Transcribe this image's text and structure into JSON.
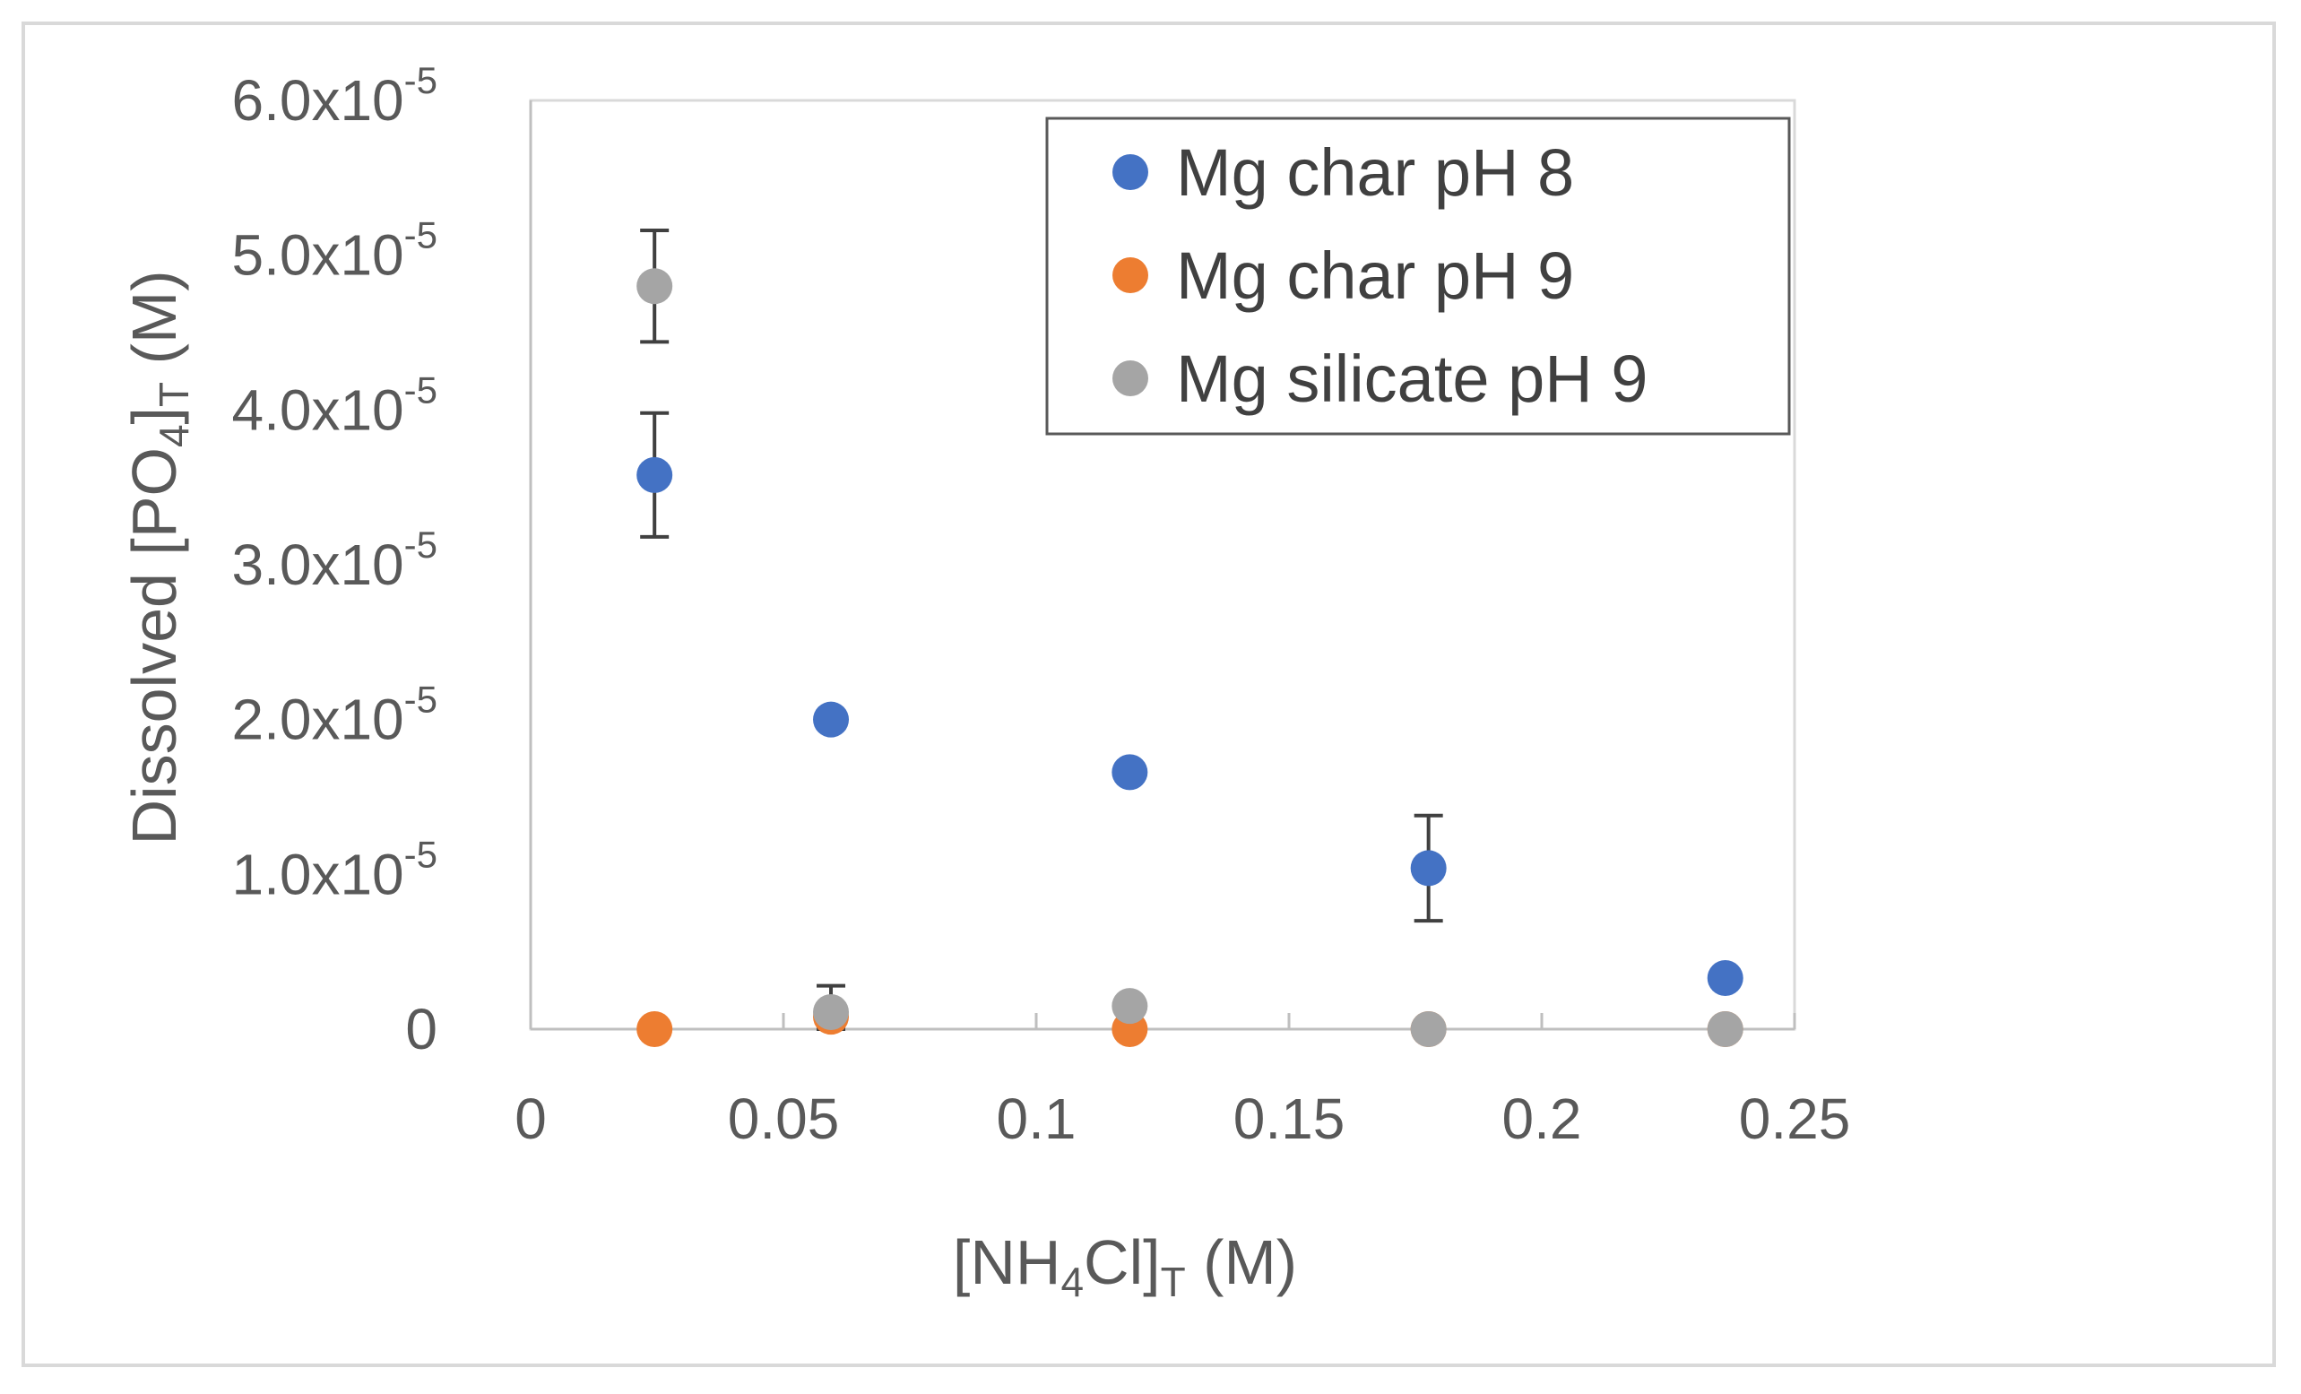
{
  "chart_data": {
    "type": "scatter",
    "title": "",
    "xlabel": {
      "main": "[NH",
      "sub1": "4",
      "mid": "Cl]",
      "sub2": "T",
      "tail": " (M)"
    },
    "ylabel": {
      "main": "Dissolved [PO",
      "sub1": "4",
      "mid": "]",
      "sub2": "T",
      "tail": " (M)"
    },
    "xlim": [
      0,
      0.25
    ],
    "ylim": [
      0,
      6e-05
    ],
    "x_ticks": [
      0,
      0.05,
      0.1,
      0.15,
      0.2,
      0.25
    ],
    "x_tick_labels": [
      "0",
      "0.05",
      "0.1",
      "0.15",
      "0.2",
      "0.25"
    ],
    "y_ticks": [
      0,
      1e-05,
      2e-05,
      3e-05,
      4e-05,
      5e-05,
      6e-05
    ],
    "y_tick_labels": [
      {
        "base": "0",
        "exp": ""
      },
      {
        "base": "1.0x10",
        "exp": "-5"
      },
      {
        "base": "2.0x10",
        "exp": "-5"
      },
      {
        "base": "3.0x10",
        "exp": "-5"
      },
      {
        "base": "4.0x10",
        "exp": "-5"
      },
      {
        "base": "5.0x10",
        "exp": "-5"
      },
      {
        "base": "6.0x10",
        "exp": "-5"
      }
    ],
    "grid": false,
    "legend_position": "top-right",
    "series": [
      {
        "name": "Mg char pH 8",
        "color": "#4472C4",
        "points": [
          {
            "x": 0.0245,
            "y": 3.58e-05,
            "err": 4e-06
          },
          {
            "x": 0.0594,
            "y": 2e-05,
            "err": 0
          },
          {
            "x": 0.1185,
            "y": 1.66e-05,
            "err": 0
          },
          {
            "x": 0.1776,
            "y": 1.04e-05,
            "err": 3.4e-06
          },
          {
            "x": 0.2363,
            "y": 3.3e-06,
            "err": 0
          }
        ]
      },
      {
        "name": "Mg char pH 9",
        "color": "#ED7D31",
        "points": [
          {
            "x": 0.0245,
            "y": 0.0,
            "err": 0
          },
          {
            "x": 0.0594,
            "y": 8e-07,
            "err": 0
          },
          {
            "x": 0.1185,
            "y": 0.0,
            "err": 0
          },
          {
            "x": 0.1776,
            "y": 0.0,
            "err": 0
          },
          {
            "x": 0.2363,
            "y": 0.0,
            "err": 0
          }
        ]
      },
      {
        "name": "Mg silicate pH 9",
        "color": "#A5A5A5",
        "points": [
          {
            "x": 0.0245,
            "y": 4.8e-05,
            "err": 3.6e-06
          },
          {
            "x": 0.0594,
            "y": 1.1e-06,
            "err": 1.7e-06
          },
          {
            "x": 0.1185,
            "y": 1.5e-06,
            "err": 0
          },
          {
            "x": 0.1776,
            "y": 0.0,
            "err": 0
          },
          {
            "x": 0.2363,
            "y": 0.0,
            "err": 0
          }
        ]
      }
    ]
  }
}
